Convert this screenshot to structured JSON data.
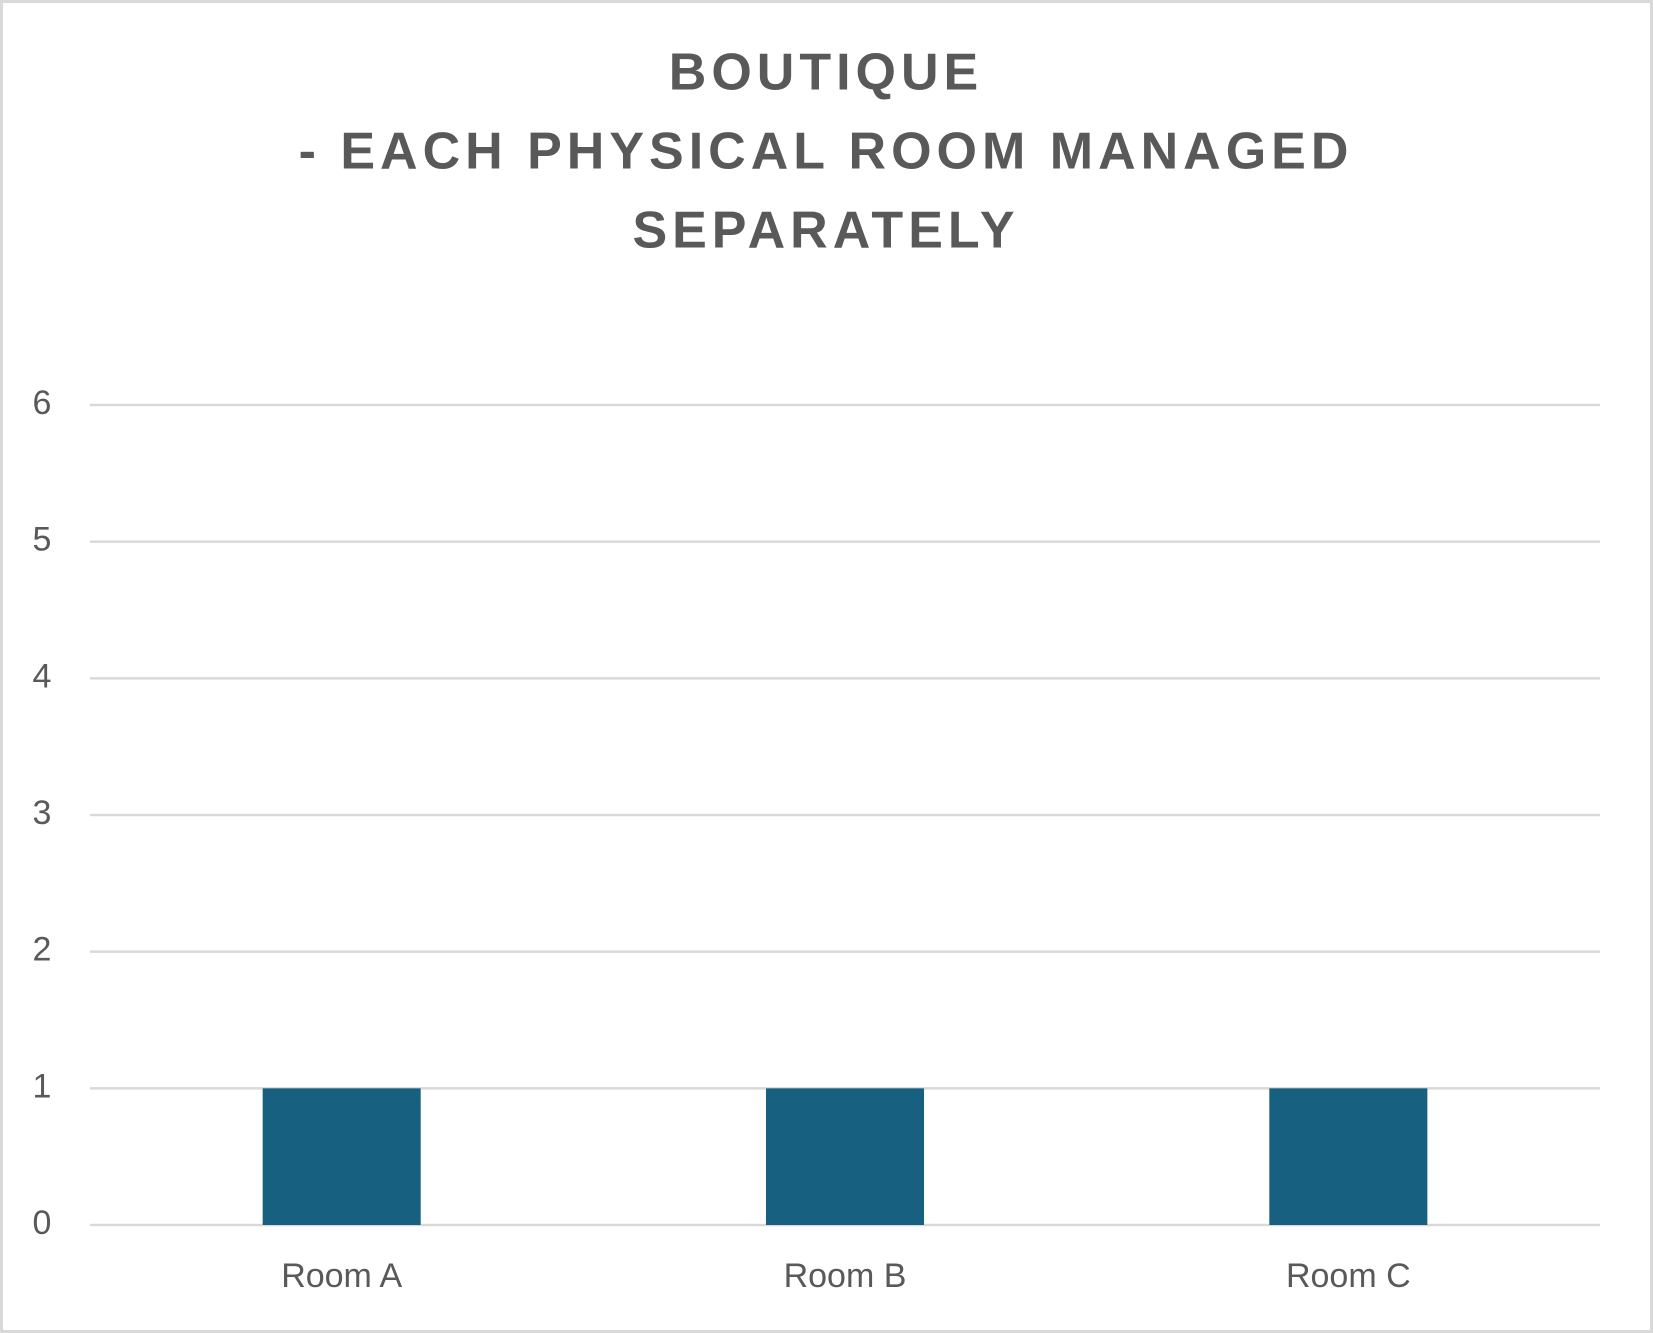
{
  "chart_data": {
    "type": "bar",
    "title": [
      "BOUTIQUE",
      "- EACH PHYSICAL ROOM MANAGED",
      "SEPARATELY"
    ],
    "categories": [
      "Room A",
      "Room B",
      "Room C"
    ],
    "values": [
      1,
      1,
      1
    ],
    "color": "#17607f",
    "ylim": [
      0,
      6
    ],
    "yticks": [
      0,
      1,
      2,
      3,
      4,
      5,
      6
    ],
    "grid": true
  }
}
